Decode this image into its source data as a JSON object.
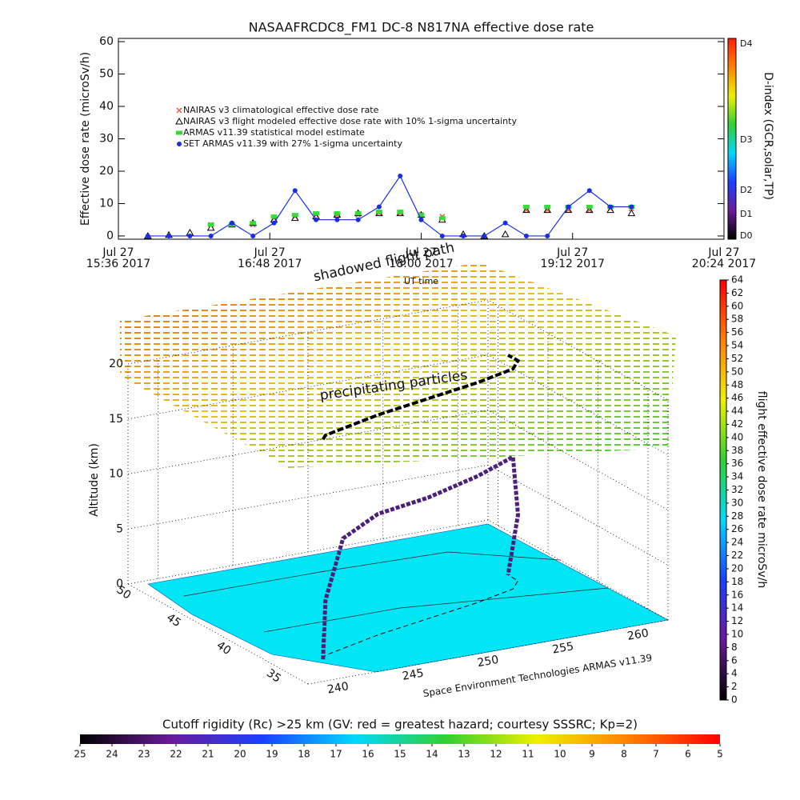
{
  "chart_data": [
    {
      "type": "line",
      "title": "NASAAFRCDC8_FM1 DC-8   N817NA effective dose rate",
      "ylabel": "Effective dose rate (microSv/h)",
      "xlabel": "UT time",
      "x": [
        "2017-07-27T15:50",
        "2017-07-27T16:00",
        "2017-07-27T16:10",
        "2017-07-27T16:20",
        "2017-07-27T16:30",
        "2017-07-27T16:40",
        "2017-07-27T16:50",
        "2017-07-27T17:00",
        "2017-07-27T17:10",
        "2017-07-27T17:20",
        "2017-07-27T17:30",
        "2017-07-27T17:40",
        "2017-07-27T17:50",
        "2017-07-27T18:00",
        "2017-07-27T18:10",
        "2017-07-27T18:20",
        "2017-07-27T18:30",
        "2017-07-27T18:40",
        "2017-07-27T18:50",
        "2017-07-27T19:00",
        "2017-07-27T19:10",
        "2017-07-27T19:20",
        "2017-07-27T19:30",
        "2017-07-27T19:40"
      ],
      "xlim": [
        "2017-07-27T15:36",
        "2017-07-27T20:24"
      ],
      "xticks": [
        {
          "value": "2017-07-27T15:36",
          "label": [
            "Jul 27",
            "15:36 2017"
          ]
        },
        {
          "value": "2017-07-27T16:48",
          "label": [
            "Jul 27",
            "16:48 2017"
          ]
        },
        {
          "value": "2017-07-27T18:00",
          "label": [
            "Jul 27",
            "18:00 2017"
          ]
        },
        {
          "value": "2017-07-27T19:12",
          "label": [
            "Jul 27",
            "19:12 2017"
          ]
        },
        {
          "value": "2017-07-27T20:24",
          "label": [
            "Jul 27",
            "20:24 2017"
          ]
        }
      ],
      "ylim": [
        -1,
        61
      ],
      "yticks": [
        0,
        10,
        20,
        30,
        40,
        50,
        60
      ],
      "series": [
        {
          "name": "NAIRAS v3 climatological effective dose rate",
          "color": "#e0604a",
          "marker": "x",
          "values": [
            null,
            null,
            null,
            3.5,
            3.5,
            3.5,
            5.5,
            6,
            6.5,
            6.5,
            6.5,
            7,
            7,
            6.5,
            6,
            null,
            null,
            null,
            8,
            8,
            8,
            8,
            8.5,
            8.5
          ]
        },
        {
          "name": "NAIRAS v3 flight modeled effective dose rate with 10% 1-sigma uncertainty",
          "color": "#000000",
          "marker": "triangle",
          "values": [
            0,
            0.3,
            1,
            2.5,
            3.5,
            4,
            5,
            5.5,
            6,
            6.5,
            7,
            7,
            7,
            6.5,
            5,
            0.5,
            0,
            0.5,
            8,
            8,
            8,
            8,
            8,
            7
          ]
        },
        {
          "name": "ARMAS v11.39 statistical model estimate",
          "color": "#33dd33",
          "marker": "star",
          "values": [
            null,
            null,
            null,
            3.5,
            3.5,
            4,
            6,
            6.5,
            7,
            7,
            7,
            7.5,
            7.5,
            6.5,
            5.5,
            null,
            null,
            null,
            9,
            9,
            9,
            9,
            9,
            9
          ]
        },
        {
          "name": "SET ARMAS v11.39 with 27% 1-sigma uncertainty",
          "color": "#1a2ee0",
          "marker": "circle",
          "line": true,
          "values": [
            0,
            0,
            0,
            0,
            4,
            0,
            4,
            14,
            5,
            5,
            5,
            9,
            18.5,
            5,
            0,
            0,
            0,
            4,
            0,
            0,
            9,
            14,
            9,
            9
          ]
        }
      ],
      "colorbar": {
        "label": "D-index (GCR,solar,TP)",
        "ticks": [
          "D0",
          "D1",
          "D2",
          "D3",
          "D4"
        ],
        "colors": [
          "#000000",
          "#6a1a9a",
          "#1a40ff",
          "#00d8ff",
          "#30d030",
          "#f0f000",
          "#ff8000",
          "#ff2000"
        ]
      }
    },
    {
      "type": "path3d",
      "zlabel": "Altitude (km)",
      "annotations": [
        "shadowed flight path",
        "precipitating particles"
      ],
      "credit": "Space Environment Technologies ARMAS v11.39",
      "xlim": [
        238,
        262
      ],
      "ylim": [
        33,
        51
      ],
      "zlim": [
        0,
        20
      ],
      "xticks": [
        240,
        245,
        250,
        255,
        260
      ],
      "yticks": [
        35,
        40,
        45,
        50
      ],
      "zticks": [
        0,
        5,
        10,
        15,
        20
      ],
      "series": [
        {
          "color": "#4b1f7a",
          "x": [
            241,
            241.5,
            243,
            246,
            250,
            254,
            257,
            258,
            258
          ],
          "y": [
            36,
            36.5,
            37,
            38,
            39,
            40,
            41,
            42,
            43
          ],
          "z": [
            0,
            5,
            10,
            11,
            11,
            11.5,
            12,
            6,
            0
          ]
        }
      ]
    },
    {
      "type": "colorbar",
      "label": "flight effective dose rate microSv/h",
      "lim": [
        0,
        64
      ],
      "ticks": [
        0,
        2,
        4,
        6,
        8,
        10,
        12,
        14,
        16,
        18,
        20,
        22,
        24,
        26,
        28,
        30,
        32,
        34,
        36,
        38,
        40,
        42,
        44,
        46,
        48,
        50,
        52,
        54,
        56,
        58,
        60,
        62,
        64
      ],
      "colors": [
        "#000000",
        "#6a1a9a",
        "#1a40ff",
        "#00d8ff",
        "#30d030",
        "#f0f000",
        "#ff8000",
        "#ff0000"
      ]
    },
    {
      "type": "colorbar",
      "label": "Cutoff rigidity (Rc) >25 km (GV: red = greatest hazard; courtesy SSSRC; Kp=2)",
      "lim": [
        25,
        5
      ],
      "ticks": [
        25,
        24,
        23,
        22,
        21,
        20,
        19,
        18,
        17,
        16,
        15,
        14,
        13,
        12,
        11,
        10,
        9,
        8,
        7,
        6,
        5
      ],
      "colors": [
        "#000000",
        "#6a1a9a",
        "#1a40ff",
        "#00d8ff",
        "#30d030",
        "#f0f000",
        "#ff8000",
        "#ff0000"
      ]
    }
  ]
}
